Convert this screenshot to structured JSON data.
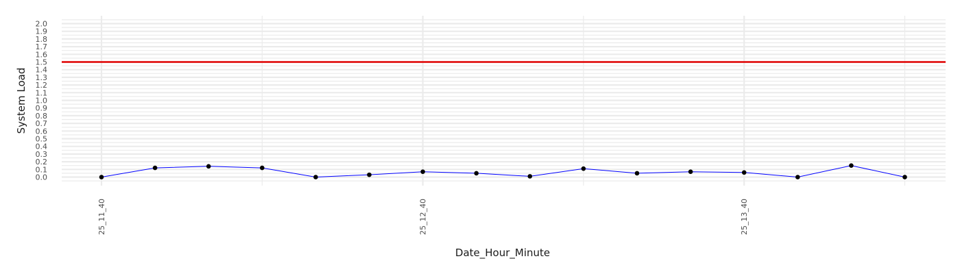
{
  "chart_data": {
    "type": "line",
    "title": "",
    "xlabel": "Date_Hour_Minute",
    "ylabel": "System Load",
    "ylim": [
      0,
      2.0
    ],
    "y_ticks": [
      "0.0",
      "0.1",
      "0.2",
      "0.3",
      "0.4",
      "0.5",
      "0.6",
      "0.7",
      "0.8",
      "0.9",
      "1.0",
      "1.1",
      "1.2",
      "1.3",
      "1.4",
      "1.5",
      "1.6",
      "1.7",
      "1.8",
      "1.9",
      "2.0"
    ],
    "x_tick_labels": [
      "25_11_40",
      "25_12_40",
      "25_13_40"
    ],
    "x_tick_indices": [
      0,
      6,
      12
    ],
    "series": [
      {
        "values": [
          0.0,
          0.12,
          0.14,
          0.12,
          0.0,
          0.03,
          0.07,
          0.05,
          0.01,
          0.11,
          0.05,
          0.07,
          0.06,
          0.0,
          0.15,
          0.0
        ],
        "color": "#0000ff",
        "marker_color": "#000000"
      }
    ],
    "threshold": {
      "value": 1.5,
      "color": "#e00000"
    },
    "grid": true,
    "background": "#ffffff",
    "grid_color": "#ebebeb",
    "legend": "none"
  }
}
